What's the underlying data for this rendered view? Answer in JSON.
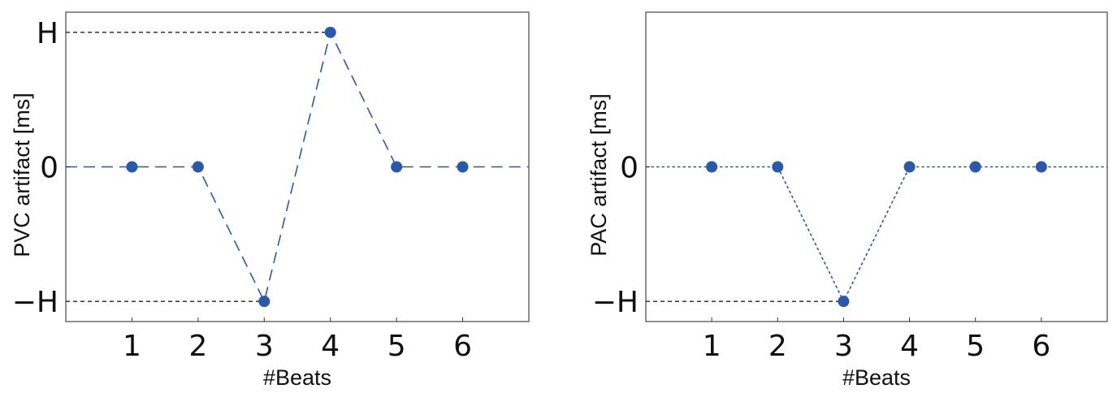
{
  "chart_data": [
    {
      "type": "line",
      "series_color": "#2b59a9",
      "line_style": "dashed",
      "x": [
        1,
        2,
        3,
        4,
        5,
        6
      ],
      "y": [
        0,
        0,
        -1,
        1,
        0,
        0
      ],
      "line_extends": [
        0,
        7
      ],
      "xlim": [
        0,
        7
      ],
      "ylim": [
        -1.15,
        1.15
      ],
      "xticks": [
        "1",
        "2",
        "3",
        "4",
        "5",
        "6"
      ],
      "yticks": [
        {
          "value": 1,
          "label": "H"
        },
        {
          "value": 0,
          "label": "0"
        },
        {
          "value": -1,
          "label": "−H"
        }
      ],
      "guides": [
        {
          "y": 1,
          "x_from": 0,
          "x_to": 4
        },
        {
          "y": -1,
          "x_from": 0,
          "x_to": 3
        }
      ],
      "xlabel": "#Beats",
      "ylabel": "PVC artifact [ms]",
      "grid": false
    },
    {
      "type": "line",
      "series_color": "#2b59a9",
      "line_style": "dotted",
      "x": [
        1,
        2,
        3,
        4,
        5,
        6
      ],
      "y": [
        0,
        0,
        -1,
        0,
        0,
        0
      ],
      "line_extends": [
        0,
        7
      ],
      "xlim": [
        0,
        7
      ],
      "ylim": [
        -1.15,
        1.15
      ],
      "xticks": [
        "1",
        "2",
        "3",
        "4",
        "5",
        "6"
      ],
      "yticks": [
        {
          "value": 0,
          "label": "0"
        },
        {
          "value": -1,
          "label": "−H"
        }
      ],
      "guides": [
        {
          "y": -1,
          "x_from": 0,
          "x_to": 3
        }
      ],
      "xlabel": "#Beats",
      "ylabel": "PAC artifact [ms]",
      "grid": false
    }
  ]
}
